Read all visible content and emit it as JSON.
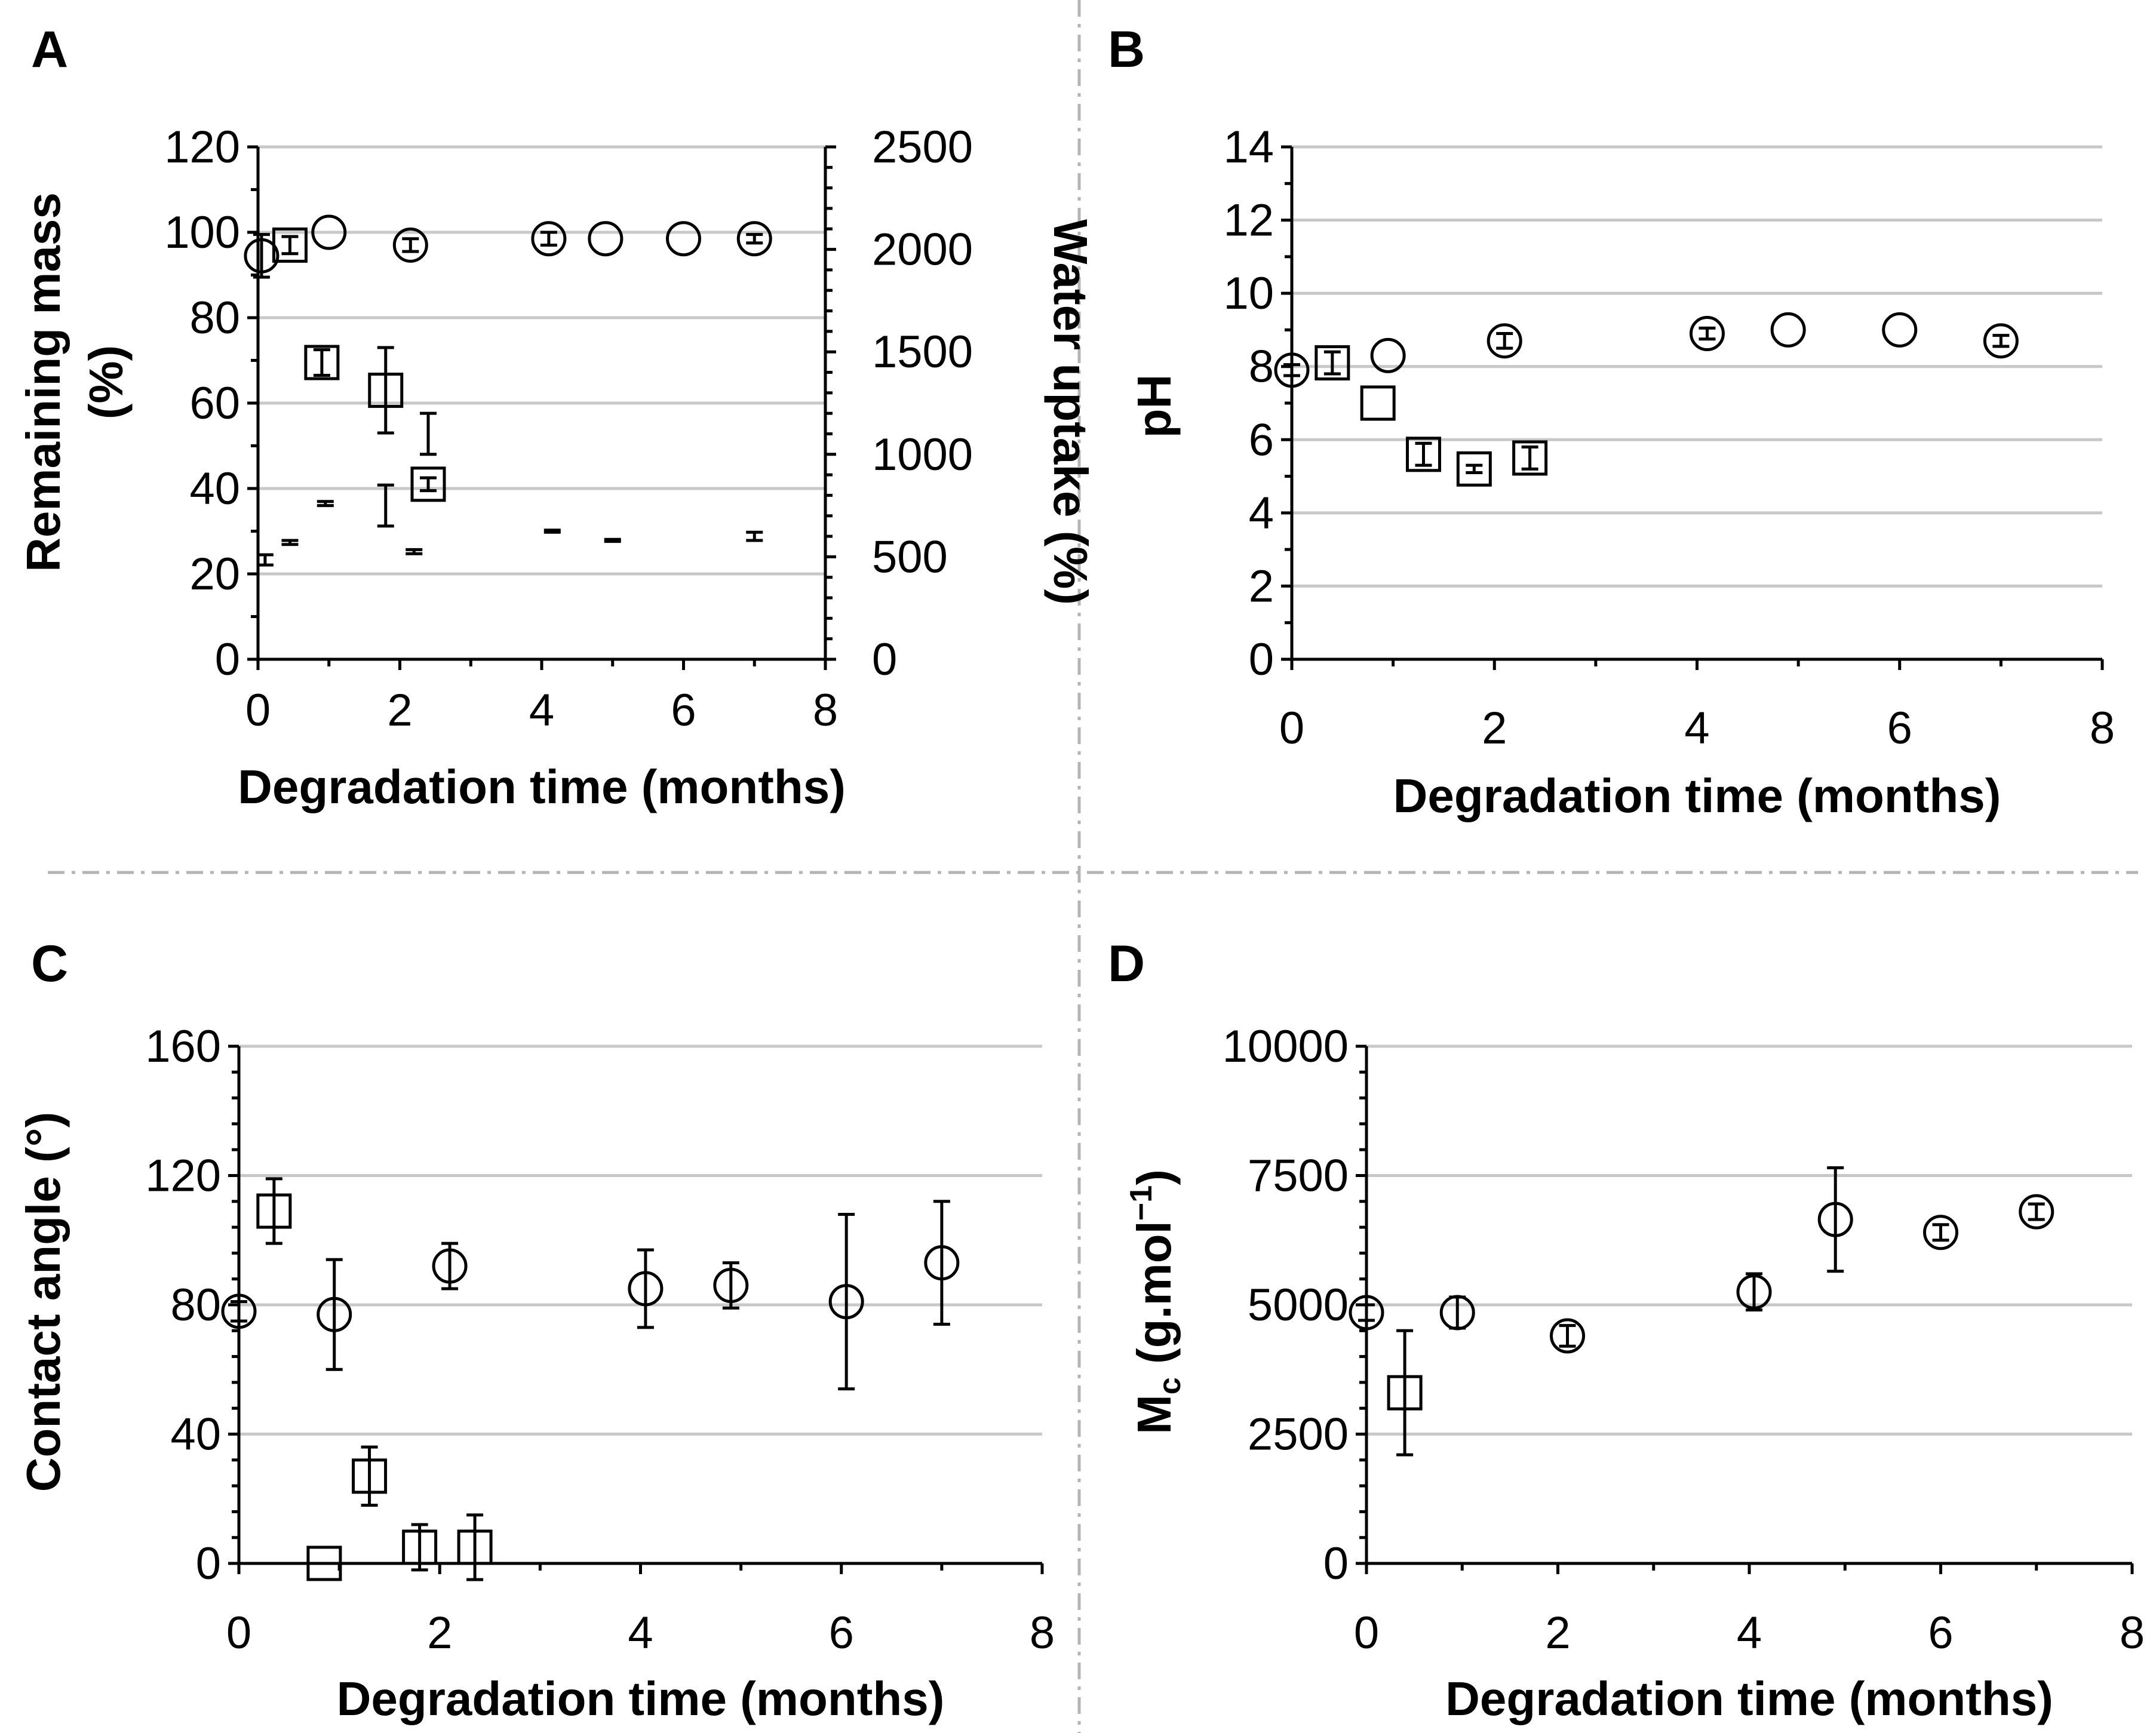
{
  "chart_data": [
    {
      "panel": "A",
      "type": "scatter",
      "xlabel": "Degradation time (months)",
      "ylabel_lines": [
        "Remaining mass",
        "(%)"
      ],
      "y2label_lines": [
        "Water uptake (%)"
      ],
      "xlim": [
        0,
        8
      ],
      "ylim": [
        0,
        120
      ],
      "y2lim": [
        0,
        2500
      ],
      "xticks": [
        "0",
        "2",
        "4",
        "6",
        "8"
      ],
      "yticks": [
        "0",
        "20",
        "40",
        "60",
        "80",
        "100",
        "120"
      ],
      "y2ticks": [
        "0",
        "500",
        "1000",
        "1500",
        "2000",
        "2500"
      ],
      "series": [
        {
          "name": "remaining-mass-circle",
          "marker": "circle",
          "axis": "y",
          "x": [
            0.05,
            1.0,
            2.15,
            4.1,
            4.9,
            6.0,
            7.0
          ],
          "y": [
            94.5,
            100,
            97,
            98.5,
            98.5,
            98.5,
            98.5
          ],
          "err": [
            5,
            0,
            1.5,
            1.5,
            0,
            0,
            1
          ]
        },
        {
          "name": "remaining-mass-square",
          "marker": "square",
          "axis": "y",
          "x": [
            0.45,
            0.9,
            1.8,
            2.4
          ],
          "y": [
            97,
            69.5,
            63,
            41
          ],
          "err": [
            2,
            3,
            10,
            1.5
          ]
        },
        {
          "name": "water-uptake-circle",
          "marker": "errorbar-only",
          "axis": "y2",
          "x": [
            0.1,
            0.95,
            2.2,
            4.15,
            5.0,
            7.0
          ],
          "y": [
            485,
            760,
            525,
            625,
            580,
            600
          ],
          "err": [
            25,
            10,
            10,
            5,
            5,
            20
          ]
        },
        {
          "name": "water-uptake-square",
          "marker": "errorbar-only",
          "axis": "y2",
          "x": [
            0.45,
            1.8,
            2.4
          ],
          "y": [
            570,
            750,
            1100
          ],
          "err": [
            10,
            100,
            100
          ]
        }
      ]
    },
    {
      "panel": "B",
      "type": "scatter",
      "xlabel": "Degradation time (months)",
      "ylabel_lines": [
        "pH"
      ],
      "xlim": [
        0,
        8
      ],
      "ylim": [
        0,
        14
      ],
      "xticks": [
        "0",
        "2",
        "4",
        "6",
        "8"
      ],
      "yticks": [
        "0",
        "2",
        "4",
        "6",
        "8",
        "10",
        "12",
        "14"
      ],
      "series": [
        {
          "name": "ph-circle",
          "marker": "circle",
          "x": [
            0.0,
            0.95,
            2.1,
            4.1,
            4.9,
            6.0,
            7.0
          ],
          "y": [
            7.9,
            8.3,
            8.7,
            8.9,
            9.0,
            9.0,
            8.7
          ],
          "err": [
            0.15,
            0,
            0.2,
            0.15,
            0,
            0,
            0.15
          ]
        },
        {
          "name": "ph-square",
          "marker": "square",
          "x": [
            0.4,
            0.85,
            1.3,
            1.8,
            2.35
          ],
          "y": [
            8.1,
            7.0,
            5.6,
            5.2,
            5.5
          ],
          "err": [
            0.3,
            0,
            0.3,
            0.1,
            0.3
          ]
        }
      ]
    },
    {
      "panel": "C",
      "type": "scatter",
      "xlabel": "Degradation time (months)",
      "ylabel_lines": [
        "Contact angle (°)"
      ],
      "xlim": [
        0,
        8
      ],
      "ylim": [
        0,
        160
      ],
      "xticks": [
        "0",
        "2",
        "4",
        "6",
        "8"
      ],
      "yticks": [
        "0",
        "40",
        "80",
        "120",
        "160"
      ],
      "series": [
        {
          "name": "contact-angle-circle",
          "marker": "circle",
          "x": [
            0.0,
            0.95,
            2.1,
            4.05,
            4.9,
            6.05,
            7.0
          ],
          "y": [
            78,
            77,
            92,
            85,
            86,
            81,
            93
          ],
          "err": [
            3,
            17,
            7,
            12,
            7,
            27,
            19
          ]
        },
        {
          "name": "contact-angle-square",
          "marker": "square",
          "x": [
            0.35,
            0.85,
            1.3,
            1.8,
            2.35
          ],
          "y": [
            109,
            0,
            27,
            5,
            5
          ],
          "err": [
            10,
            0,
            9,
            7,
            10
          ]
        }
      ]
    },
    {
      "panel": "D",
      "type": "scatter",
      "xlabel": "Degradation time (months)",
      "ylabel_main": "M",
      "ylabel_sub": "c",
      "ylabel_rest": " (g.mol",
      "ylabel_sup": "−1",
      "ylabel_end": ")",
      "xlim": [
        0,
        8
      ],
      "ylim": [
        0,
        10000
      ],
      "xticks": [
        "0",
        "2",
        "4",
        "6",
        "8"
      ],
      "yticks": [
        "0",
        "2500",
        "5000",
        "7500",
        "10000"
      ],
      "series": [
        {
          "name": "mc-circle",
          "marker": "circle",
          "x": [
            0.0,
            0.95,
            2.1,
            4.05,
            4.9,
            6.0,
            7.0
          ],
          "y": [
            4850,
            4850,
            4400,
            5250,
            6650,
            6400,
            6800
          ],
          "err": [
            150,
            300,
            200,
            350,
            1000,
            150,
            150
          ]
        },
        {
          "name": "mc-square",
          "marker": "square",
          "x": [
            0.4
          ],
          "y": [
            3300
          ],
          "err": [
            1200
          ]
        }
      ]
    }
  ]
}
